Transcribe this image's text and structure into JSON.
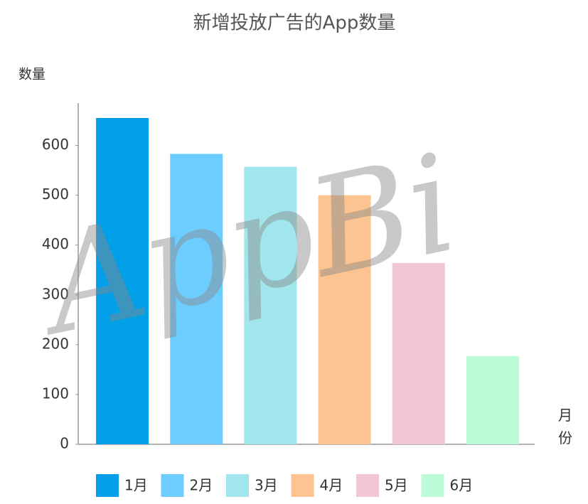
{
  "chart_data": {
    "type": "bar",
    "title": "新增投放广告的App数量",
    "ylabel": "数量",
    "xlabel": "月份",
    "categories": [
      "1月",
      "2月",
      "3月",
      "4月",
      "5月",
      "6月"
    ],
    "values": [
      655,
      583,
      557,
      500,
      364,
      177
    ],
    "colors": [
      "#009fe8",
      "#6dcdff",
      "#a0e6ec",
      "#fbc491",
      "#f2c6d4",
      "#bcfad8"
    ],
    "ylim": [
      0,
      685
    ],
    "yticks": [
      0,
      100,
      200,
      300,
      400,
      500,
      600
    ],
    "grid": false,
    "legend": "bottom",
    "watermark": "AppBi"
  }
}
